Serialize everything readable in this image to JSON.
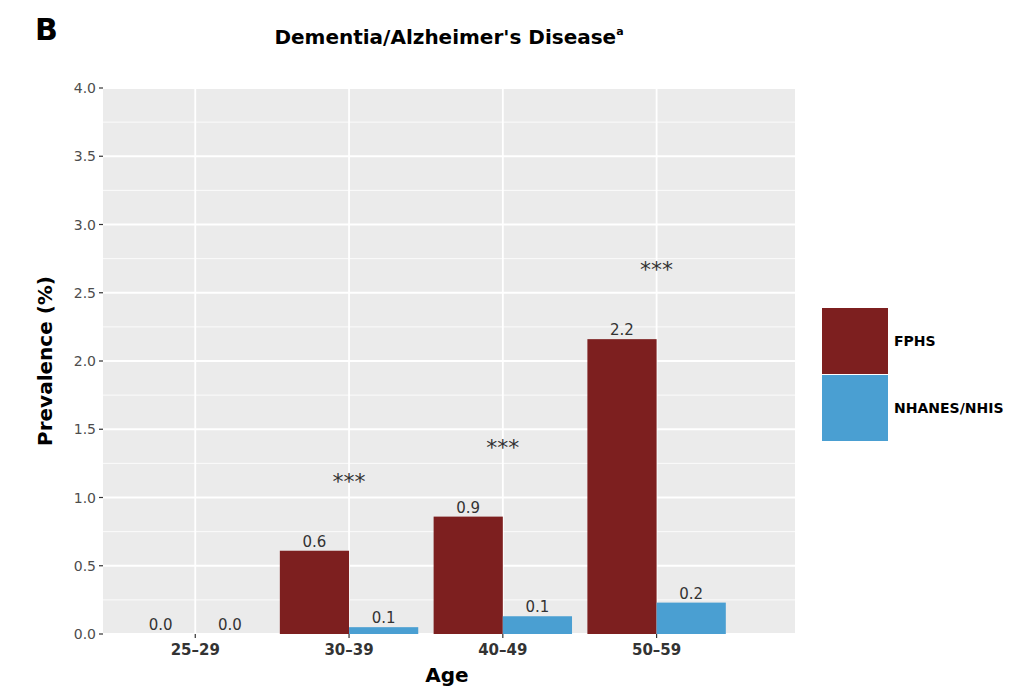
{
  "chart_data": {
    "type": "bar",
    "panel_label": "B",
    "title": "Dementia/Alzheimer's Disease",
    "title_note": "a",
    "x_label": "Age",
    "y_label": "Prevalence (%)",
    "categories": [
      "25–29",
      "30–39",
      "40–49",
      "50–59"
    ],
    "series": [
      {
        "name": "FPHS",
        "color": "#7d1f1f",
        "values": [
          0,
          0.61,
          0.86,
          2.16
        ],
        "value_labels": [
          "0.0",
          "0.6",
          "0.9",
          "2.2"
        ]
      },
      {
        "name": "NHANES/NHIS",
        "color": "#4a9fd2",
        "values": [
          0,
          0.05,
          0.13,
          0.23
        ],
        "value_labels": [
          "0.0",
          "0.1",
          "0.1",
          "0.2"
        ]
      }
    ],
    "ylim": [
      0,
      4
    ],
    "yticks": [
      {
        "value": 0,
        "label": "0.0"
      },
      0.5,
      {
        "value": 1,
        "label": "1.0"
      },
      1.5,
      {
        "value": 2,
        "label": "2.0"
      },
      2.5,
      {
        "value": 3,
        "label": "3.0"
      },
      3.5,
      {
        "value": 4,
        "label": "4.0"
      }
    ],
    "annotations": [
      {
        "text": "***",
        "category": "30–39"
      },
      {
        "text": "***",
        "category": "40–49"
      },
      {
        "text": "***",
        "category": "50–59"
      }
    ],
    "grid": true,
    "data_labels": true,
    "legend": "right"
  }
}
